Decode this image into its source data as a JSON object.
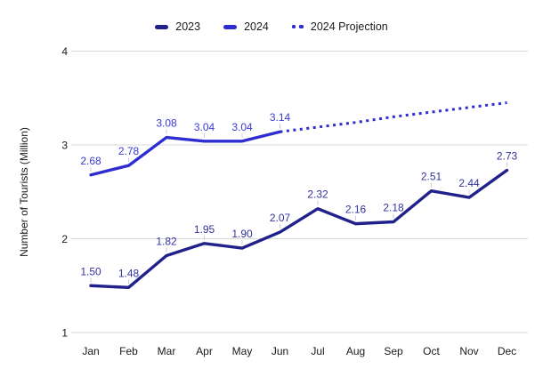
{
  "legend": {
    "items": [
      {
        "label": "2023",
        "color": "#21218c",
        "style": "solid"
      },
      {
        "label": "2024",
        "color": "#2d2dd2",
        "style": "solid"
      },
      {
        "label": "2024 Projection",
        "color": "#2d2dd2",
        "style": "dotted"
      }
    ]
  },
  "axes": {
    "ylabel": "Number of Tourists (Million)"
  },
  "chart_data": {
    "type": "line",
    "title": "",
    "ylabel": "Number of Tourists (Million)",
    "xlabel": "",
    "categories": [
      "Jan",
      "Feb",
      "Mar",
      "Apr",
      "May",
      "Jun",
      "Jul",
      "Aug",
      "Sep",
      "Oct",
      "Nov",
      "Dec"
    ],
    "yticks": [
      1,
      2,
      3,
      4
    ],
    "ylim": [
      1,
      4
    ],
    "grid": "horizontal-only",
    "gridline_color": "#d9d9d9",
    "legend_position": "top-center",
    "tick_label_color": "#1a1a1a",
    "leader_line_color": "#cccccc",
    "series": [
      {
        "name": "2023",
        "color": "#21218c",
        "label_color": "#32329f",
        "line_style": "solid",
        "show_value_labels": true,
        "values": [
          1.5,
          1.48,
          1.82,
          1.95,
          1.9,
          2.07,
          2.32,
          2.16,
          2.18,
          2.51,
          2.44,
          2.73
        ]
      },
      {
        "name": "2024",
        "color": "#2d2dd2",
        "label_color": "#3a3ad4",
        "line_style": "solid",
        "show_value_labels": true,
        "values": [
          2.68,
          2.78,
          3.08,
          3.04,
          3.04,
          3.14,
          null,
          null,
          null,
          null,
          null,
          null
        ]
      },
      {
        "name": "2024 Projection",
        "color": "#2d2dd2",
        "label_color": "#3a3ad4",
        "line_style": "dotted",
        "show_value_labels": false,
        "values": [
          null,
          null,
          null,
          null,
          null,
          3.14,
          3.19,
          3.24,
          3.3,
          3.35,
          3.4,
          3.45
        ]
      }
    ]
  }
}
